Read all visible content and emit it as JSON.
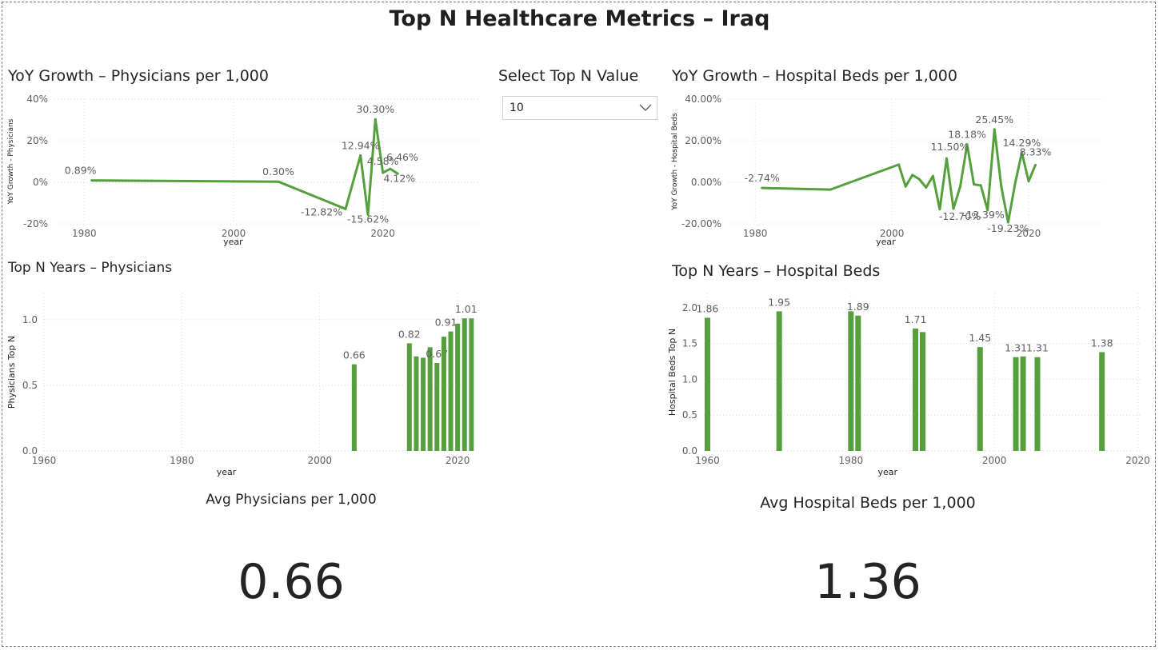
{
  "page": {
    "title": "Top N Healthcare Metrics – Iraq"
  },
  "slicer": {
    "title": "Select Top N Value",
    "value": "10",
    "icon": "chevron-down-icon"
  },
  "colors": {
    "series": "#55a03c",
    "grid": "#dcdcdc",
    "text": "#252423"
  },
  "cards": {
    "physicians": {
      "label": "Avg Physicians per 1,000",
      "value": "0.66"
    },
    "beds": {
      "label": "Avg Hospital Beds per 1,000",
      "value": "1.36"
    }
  },
  "chart_data": [
    {
      "id": "yoy_physicians",
      "type": "line",
      "title": "YoY Growth – Physicians per 1,000",
      "xlabel": "year",
      "ylabel": "YoY Growth - Physicians",
      "xlim": [
        1976,
        2033
      ],
      "xticks": [
        1980,
        2000,
        2020
      ],
      "ylim": [
        -20,
        40
      ],
      "yticks": [
        -20,
        0,
        20,
        40
      ],
      "ytick_labels": [
        "-20%",
        "0%",
        "20%",
        "40%"
      ],
      "x": [
        1981,
        2006,
        2015,
        2017,
        2018,
        2019,
        2020,
        2021,
        2022
      ],
      "y": [
        0.89,
        0.3,
        -12.82,
        12.94,
        -15.62,
        30.3,
        4.58,
        6.46,
        4.12
      ],
      "labels": [
        "0.89%",
        "0.30%",
        "-12.82%",
        "12.94%",
        "-15.62%",
        "30.30%",
        "4.58%",
        "6.46%",
        "4.12%"
      ],
      "legend": "none",
      "grid": true
    },
    {
      "id": "yoy_beds",
      "type": "line",
      "title": "YoY Growth – Hospital Beds per 1,000",
      "xlabel": "year",
      "ylabel": "YoY Growth - Hospital Beds",
      "xlim": [
        1976,
        2031
      ],
      "xticks": [
        1980,
        2000,
        2020
      ],
      "ylim": [
        -20,
        40
      ],
      "yticks": [
        -20,
        0,
        20,
        40
      ],
      "ytick_labels": [
        "-20.00%",
        "0.00%",
        "20.00%",
        "40.00%"
      ],
      "x": [
        1981,
        1991,
        2001,
        2002,
        2003,
        2004,
        2005,
        2006,
        2007,
        2008,
        2009,
        2010,
        2011,
        2012,
        2013,
        2014,
        2015,
        2016,
        2017,
        2018,
        2019,
        2020,
        2021
      ],
      "y": [
        -2.74,
        -3.5,
        8.5,
        -2.0,
        3.5,
        1.5,
        -2.5,
        3.0,
        -13.0,
        11.5,
        -12.7,
        -2.0,
        18.18,
        -1.0,
        -1.5,
        -13.39,
        25.45,
        -2.0,
        -19.23,
        -1.0,
        14.29,
        0.5,
        8.33
      ],
      "labels": [
        "-2.74%",
        "",
        "",
        "",
        "",
        "",
        "",
        "",
        "",
        "11.50%",
        "-12.70%",
        "",
        "18.18%",
        "",
        "",
        "-13.39%",
        "25.45%",
        "",
        "-19.23%",
        "",
        "14.29%",
        "",
        "8.33%"
      ],
      "legend": "none",
      "grid": true
    },
    {
      "id": "topn_physicians",
      "type": "bar",
      "title": "Top N Years – Physicians",
      "xlabel": "year",
      "ylabel": "Physicians Top N",
      "xlim": [
        1960,
        2023
      ],
      "xticks": [
        1960,
        1980,
        2000,
        2020
      ],
      "ylim": [
        0,
        1.2
      ],
      "yticks": [
        0.0,
        0.5,
        1.0
      ],
      "ytick_labels": [
        "0.0",
        "0.5",
        "1.0"
      ],
      "x": [
        2005,
        2013,
        2014,
        2015,
        2016,
        2017,
        2018,
        2019,
        2020,
        2021,
        2022
      ],
      "values": [
        0.66,
        0.82,
        0.72,
        0.71,
        0.79,
        0.67,
        0.87,
        0.91,
        0.97,
        1.01,
        1.01
      ],
      "labels": [
        "0.66",
        "0.82",
        "",
        "",
        "",
        "0.67",
        "",
        "0.91",
        "",
        "1.01",
        ""
      ],
      "legend": "none",
      "grid": true
    },
    {
      "id": "topn_beds",
      "type": "bar",
      "title": "Top N Years – Hospital Beds",
      "xlabel": "year",
      "ylabel": "Hospital Beds Top N",
      "xlim": [
        1959.5,
        2020.5
      ],
      "xticks": [
        1960,
        1980,
        2000,
        2020
      ],
      "ylim": [
        0,
        2.2
      ],
      "yticks": [
        0.0,
        0.5,
        1.0,
        1.5,
        2.0
      ],
      "ytick_labels": [
        "0.0",
        "0.5",
        "1.0",
        "1.5",
        "2.0"
      ],
      "x": [
        1960,
        1970,
        1980,
        1981,
        1989,
        1990,
        1998,
        2003,
        2004,
        2006,
        2015
      ],
      "values": [
        1.86,
        1.95,
        1.95,
        1.89,
        1.71,
        1.66,
        1.45,
        1.31,
        1.32,
        1.31,
        1.38
      ],
      "labels": [
        "1.86",
        "1.95",
        "",
        "1.89",
        "1.71",
        "",
        "1.45",
        "1.31",
        "",
        "1.31",
        "1.38"
      ],
      "legend": "none",
      "grid": true
    }
  ]
}
